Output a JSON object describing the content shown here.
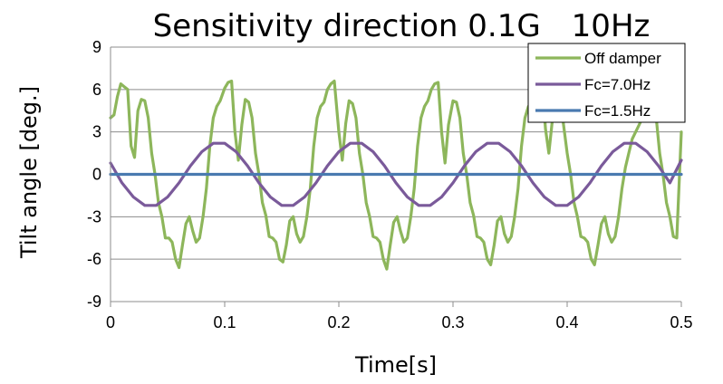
{
  "chart_data": {
    "type": "line",
    "title": "Sensitivity direction 0.1G　10Hz",
    "xlabel": "Time[s]",
    "ylabel": "Tilt angle [deg.]",
    "xlim": [
      0,
      0.5
    ],
    "ylim": [
      -9,
      9
    ],
    "xticks": [
      0,
      0.1,
      0.2,
      0.3,
      0.4,
      0.5
    ],
    "xtick_labels": [
      "0",
      "0.1",
      "0.2",
      "0.3",
      "0.4",
      "0.5"
    ],
    "yticks": [
      9,
      6,
      3,
      0,
      -3,
      -6,
      -9
    ],
    "ytick_labels": [
      "9",
      "6",
      "3",
      "0",
      "-3",
      "-6",
      "-9"
    ],
    "grid": "horizontal",
    "legend_position": "top-right",
    "series": [
      {
        "name": "Off damper",
        "color": "#8db65b",
        "x": [
          0,
          0.003,
          0.006,
          0.009,
          0.012,
          0.015,
          0.018,
          0.021,
          0.024,
          0.027,
          0.03,
          0.033,
          0.036,
          0.039,
          0.042,
          0.045,
          0.048,
          0.051,
          0.054,
          0.057,
          0.06,
          0.063,
          0.066,
          0.069,
          0.072,
          0.075,
          0.078,
          0.081,
          0.084,
          0.087,
          0.09,
          0.093,
          0.096,
          0.1,
          0.103,
          0.106,
          0.109,
          0.112,
          0.115,
          0.118,
          0.121,
          0.124,
          0.127,
          0.13,
          0.133,
          0.136,
          0.139,
          0.142,
          0.145,
          0.148,
          0.151,
          0.154,
          0.157,
          0.16,
          0.163,
          0.166,
          0.169,
          0.172,
          0.175,
          0.178,
          0.181,
          0.184,
          0.187,
          0.19,
          0.193,
          0.196,
          0.2,
          0.203,
          0.206,
          0.209,
          0.212,
          0.215,
          0.218,
          0.221,
          0.224,
          0.227,
          0.23,
          0.233,
          0.236,
          0.239,
          0.242,
          0.245,
          0.248,
          0.251,
          0.254,
          0.257,
          0.26,
          0.263,
          0.266,
          0.269,
          0.272,
          0.275,
          0.278,
          0.281,
          0.284,
          0.287,
          0.29,
          0.293,
          0.296,
          0.3,
          0.303,
          0.306,
          0.309,
          0.312,
          0.315,
          0.318,
          0.321,
          0.324,
          0.327,
          0.33,
          0.333,
          0.336,
          0.339,
          0.342,
          0.345,
          0.348,
          0.351,
          0.354,
          0.357,
          0.36,
          0.363,
          0.366,
          0.369,
          0.372,
          0.375,
          0.378,
          0.381,
          0.384,
          0.387,
          0.39,
          0.393,
          0.396,
          0.4,
          0.403,
          0.406,
          0.409,
          0.412,
          0.415,
          0.418,
          0.421,
          0.424,
          0.427,
          0.43,
          0.433,
          0.436,
          0.439,
          0.442,
          0.445,
          0.448,
          0.451,
          0.454,
          0.457,
          0.46,
          0.463,
          0.466,
          0.469,
          0.472,
          0.475,
          0.478,
          0.481,
          0.484,
          0.487,
          0.49,
          0.493,
          0.496,
          0.5
        ],
        "y": [
          4.0,
          4.2,
          5.5,
          6.4,
          6.2,
          6.0,
          2.0,
          1.2,
          4.5,
          5.3,
          5.2,
          4.0,
          1.5,
          0.0,
          -2.0,
          -3.0,
          -4.5,
          -4.5,
          -4.8,
          -6.0,
          -6.6,
          -5.0,
          -3.5,
          -3.0,
          -4.0,
          -4.8,
          -4.5,
          -3.0,
          -1.0,
          2.0,
          4.0,
          4.8,
          5.2,
          6.1,
          6.5,
          6.6,
          3.0,
          1.0,
          3.5,
          5.3,
          5.1,
          4.0,
          1.5,
          0.0,
          -2.0,
          -2.9,
          -4.4,
          -4.5,
          -4.8,
          -6.0,
          -6.2,
          -5.0,
          -3.3,
          -3.0,
          -4.2,
          -4.8,
          -4.4,
          -3.0,
          -1.0,
          2.0,
          4.0,
          4.8,
          5.1,
          6.0,
          6.4,
          6.6,
          3.0,
          1.0,
          3.6,
          5.2,
          5.0,
          4.0,
          1.5,
          0.0,
          -2.0,
          -3.0,
          -4.4,
          -4.5,
          -4.8,
          -6.0,
          -6.7,
          -5.0,
          -3.4,
          -3.0,
          -4.0,
          -4.8,
          -4.5,
          -3.0,
          -1.0,
          2.0,
          4.0,
          4.8,
          5.2,
          6.0,
          6.4,
          6.5,
          3.0,
          0.8,
          3.5,
          5.2,
          5.1,
          4.0,
          1.5,
          0.0,
          -2.0,
          -2.9,
          -4.4,
          -4.5,
          -4.8,
          -6.0,
          -6.4,
          -5.0,
          -3.3,
          -3.0,
          -4.2,
          -4.8,
          -4.4,
          -3.0,
          -1.0,
          2.0,
          4.0,
          4.8,
          5.1,
          6.0,
          6.4,
          6.5,
          3.2,
          1.5,
          3.8,
          5.2,
          5.0,
          4.0,
          1.5,
          0.0,
          -2.0,
          -3.0,
          -4.4,
          -4.5,
          -4.8,
          -6.0,
          -6.4,
          -5.0,
          -3.5,
          -3.0,
          -4.2,
          -4.8,
          -4.4,
          -3.0,
          -1.0,
          0.5,
          1.5,
          2.5,
          3.0,
          3.5,
          4.0,
          4.5,
          5.0,
          5.0,
          4.0,
          1.5,
          0.0,
          -2.0,
          -3.0,
          -4.4,
          -4.5,
          3.0
        ]
      },
      {
        "name": "Fc=7.0Hz",
        "color": "#7a5a9a",
        "x": [
          0,
          0.01,
          0.02,
          0.03,
          0.04,
          0.05,
          0.06,
          0.07,
          0.08,
          0.09,
          0.1,
          0.11,
          0.12,
          0.13,
          0.14,
          0.15,
          0.16,
          0.17,
          0.18,
          0.19,
          0.2,
          0.21,
          0.22,
          0.23,
          0.24,
          0.25,
          0.26,
          0.27,
          0.28,
          0.29,
          0.3,
          0.31,
          0.32,
          0.33,
          0.34,
          0.35,
          0.36,
          0.37,
          0.38,
          0.39,
          0.4,
          0.41,
          0.42,
          0.43,
          0.44,
          0.45,
          0.46,
          0.47,
          0.48,
          0.49,
          0.5
        ],
        "y": [
          0.8,
          -0.6,
          -1.6,
          -2.2,
          -2.2,
          -1.6,
          -0.6,
          0.6,
          1.6,
          2.2,
          2.2,
          1.6,
          0.6,
          -0.6,
          -1.6,
          -2.2,
          -2.2,
          -1.6,
          -0.6,
          0.6,
          1.6,
          2.2,
          2.2,
          1.6,
          0.6,
          -0.6,
          -1.6,
          -2.2,
          -2.2,
          -1.6,
          -0.6,
          0.6,
          1.6,
          2.2,
          2.2,
          1.6,
          0.6,
          -0.6,
          -1.6,
          -2.2,
          -2.2,
          -1.6,
          -0.6,
          0.6,
          1.6,
          2.2,
          2.2,
          1.6,
          0.6,
          -0.6,
          1.0
        ]
      },
      {
        "name": "Fc=1.5Hz",
        "color": "#4a7ab0",
        "x": [
          0,
          0.5
        ],
        "y": [
          0,
          0
        ]
      }
    ]
  }
}
